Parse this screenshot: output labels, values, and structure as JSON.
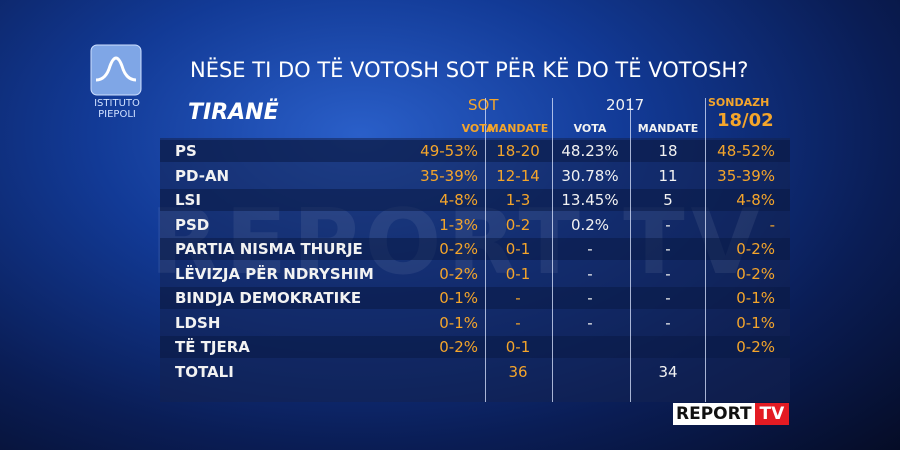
{
  "logo": {
    "line1": "ISTITUTO",
    "line2": "PIEPOLI"
  },
  "header": {
    "title": "NËSE TI DO TË VOTOSH SOT PËR KË DO TË VOTOSH?"
  },
  "table": {
    "city": "TIRANË",
    "groups": {
      "sot": "SOT",
      "y2017": "2017",
      "sondazh": "SONDAZH",
      "sondazh_date": "18/02"
    },
    "subheaders": [
      "VOTA",
      "MANDATE",
      "VOTA",
      "MANDATE"
    ],
    "rows": [
      [
        "PS",
        "49-53%",
        "18-20",
        "48.23%",
        "18",
        "48-52%"
      ],
      [
        "PD-AN",
        "35-39%",
        "12-14",
        "30.78%",
        "11",
        "35-39%"
      ],
      [
        "LSI",
        "4-8%",
        "1-3",
        "13.45%",
        "5",
        "4-8%"
      ],
      [
        "PSD",
        "1-3%",
        "0-2",
        "0.2%",
        "-",
        "-"
      ],
      [
        "PARTIA NISMA THURJE",
        "0-2%",
        "0-1",
        "-",
        "-",
        "0-2%"
      ],
      [
        "LËVIZJA PËR NDRYSHIM",
        "0-2%",
        "0-1",
        "-",
        "-",
        "0-2%"
      ],
      [
        "BINDJA DEMOKRATIKE",
        "0-1%",
        "-",
        "-",
        "-",
        "0-1%"
      ],
      [
        "LDSH",
        "0-1%",
        "-",
        "-",
        "-",
        "0-1%"
      ],
      [
        "TË TJERA",
        "0-2%",
        "0-1",
        null,
        null,
        "0-2%"
      ],
      [
        "TOTALI",
        null,
        "36",
        null,
        "34",
        null
      ]
    ]
  },
  "watermark": "REPORT TV",
  "brand": {
    "report": "REPORT",
    "tv": "TV"
  }
}
